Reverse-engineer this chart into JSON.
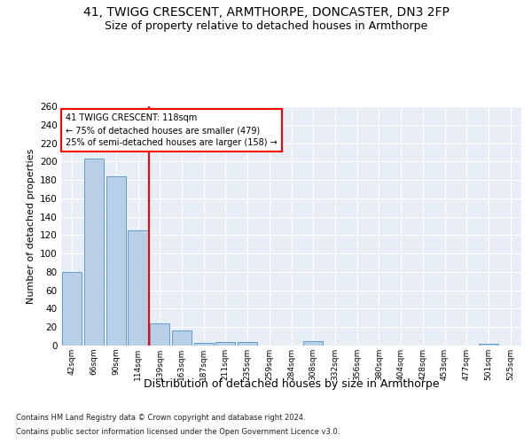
{
  "title1": "41, TWIGG CRESCENT, ARMTHORPE, DONCASTER, DN3 2FP",
  "title2": "Size of property relative to detached houses in Armthorpe",
  "xlabel": "Distribution of detached houses by size in Armthorpe",
  "ylabel": "Number of detached properties",
  "footnote1": "Contains HM Land Registry data © Crown copyright and database right 2024.",
  "footnote2": "Contains public sector information licensed under the Open Government Licence v3.0.",
  "categories": [
    "42sqm",
    "66sqm",
    "90sqm",
    "114sqm",
    "139sqm",
    "163sqm",
    "187sqm",
    "211sqm",
    "235sqm",
    "259sqm",
    "284sqm",
    "308sqm",
    "332sqm",
    "356sqm",
    "380sqm",
    "404sqm",
    "428sqm",
    "453sqm",
    "477sqm",
    "501sqm",
    "525sqm"
  ],
  "values": [
    80,
    203,
    184,
    125,
    24,
    16,
    3,
    4,
    4,
    0,
    0,
    5,
    0,
    0,
    0,
    0,
    0,
    0,
    0,
    2,
    0
  ],
  "bar_color": "#b8cfe8",
  "bar_edge_color": "#6699cc",
  "vline_x": 3.5,
  "vline_color": "red",
  "annotation_title": "41 TWIGG CRESCENT: 118sqm",
  "annotation_line1": "← 75% of detached houses are smaller (479)",
  "annotation_line2": "25% of semi-detached houses are larger (158) →",
  "annotation_box_color": "white",
  "annotation_box_edge": "red",
  "ylim": [
    0,
    260
  ],
  "yticks": [
    0,
    20,
    40,
    60,
    80,
    100,
    120,
    140,
    160,
    180,
    200,
    220,
    240,
    260
  ],
  "bg_color": "#e8eef5",
  "grid_color": "white",
  "title1_fontsize": 10,
  "title2_fontsize": 9,
  "xlabel_fontsize": 9,
  "ylabel_fontsize": 8,
  "fig_bg_color": "#ffffff"
}
